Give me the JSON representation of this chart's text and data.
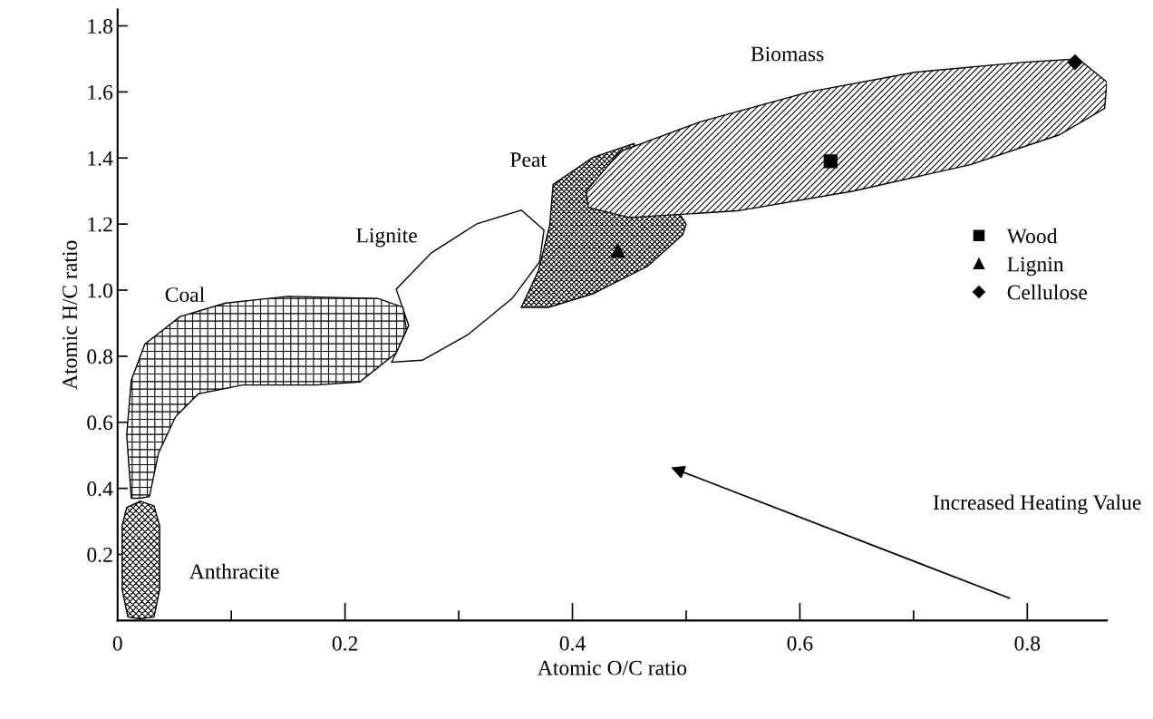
{
  "chart_data": {
    "type": "scatter",
    "xlabel": "Atomic O/C ratio",
    "ylabel": "Atomic H/C ratio",
    "xlim": [
      0,
      0.87
    ],
    "ylim": [
      0,
      1.85
    ],
    "xticks": [
      {
        "value": 0,
        "label": "0"
      },
      {
        "value": 0.1,
        "label": null
      },
      0.2,
      {
        "value": 0.3,
        "label": null
      },
      0.4,
      {
        "value": 0.5,
        "label": null
      },
      0.6,
      {
        "value": 0.7,
        "label": null
      },
      0.8
    ],
    "yticks": [
      0.2,
      0.4,
      0.6,
      0.8,
      {
        "value": 1.0,
        "label": "1.0"
      },
      1.2,
      1.4,
      1.6,
      1.8
    ],
    "grid": false,
    "legend": "right",
    "series": [
      {
        "type": "area",
        "color": "#000000",
        "x": [
          0.355,
          0.37,
          0.38,
          0.383,
          0.418,
          0.454,
          0.5,
          0.497,
          0.466,
          0.418,
          0.379
        ],
        "values": [
          0.948,
          1.058,
          1.196,
          1.32,
          1.402,
          1.444,
          1.2,
          1.168,
          1.072,
          0.989,
          0.948
        ]
      },
      {
        "type": "area",
        "color": "#000000",
        "x": [
          0.412,
          0.442,
          0.513,
          0.608,
          0.702,
          0.797,
          0.845,
          0.87,
          0.868,
          0.828,
          0.75,
          0.647,
          0.545,
          0.45,
          0.414
        ],
        "values": [
          1.3,
          1.42,
          1.51,
          1.6,
          1.66,
          1.69,
          1.7,
          1.63,
          1.55,
          1.47,
          1.38,
          1.3,
          1.24,
          1.22,
          1.25
        ]
      },
      {
        "type": "area",
        "color": "#000000",
        "x": [
          0.241,
          0.256,
          0.245,
          0.276,
          0.316,
          0.355,
          0.375,
          0.371,
          0.347,
          0.308,
          0.268
        ],
        "values": [
          0.782,
          0.893,
          1.003,
          1.113,
          1.201,
          1.242,
          1.182,
          1.085,
          0.975,
          0.865,
          0.788
        ]
      },
      {
        "type": "area",
        "color": "#000000",
        "x": [
          0.012,
          0.008,
          0.012,
          0.024,
          0.055,
          0.095,
          0.15,
          0.229,
          0.251,
          0.254,
          0.245,
          0.213,
          0.174,
          0.11,
          0.071,
          0.051,
          0.036,
          0.028,
          0.02
        ],
        "values": [
          0.37,
          0.562,
          0.727,
          0.837,
          0.92,
          0.961,
          0.981,
          0.975,
          0.948,
          0.879,
          0.81,
          0.722,
          0.713,
          0.713,
          0.686,
          0.617,
          0.507,
          0.375,
          0.37
        ]
      },
      {
        "type": "area",
        "color": "#000000",
        "x": [
          0.004,
          0.008,
          0.02,
          0.032,
          0.037,
          0.037,
          0.032,
          0.02,
          0.009,
          0.004
        ],
        "values": [
          0.287,
          0.342,
          0.361,
          0.347,
          0.287,
          0.094,
          0.011,
          0.005,
          0.011,
          0.094
        ]
      },
      {
        "name": "Wood",
        "color": "#000000",
        "marker": "square",
        "x": [
          0.627
        ],
        "values": [
          1.39
        ]
      },
      {
        "name": "Lignin",
        "color": "#000000",
        "marker": "triangle",
        "x": [
          0.44
        ],
        "values": [
          1.12
        ]
      },
      {
        "name": "Cellulose",
        "color": "#000000",
        "marker": "diamond",
        "x": [
          0.842
        ],
        "values": [
          1.69
        ]
      }
    ],
    "annotations": [
      "Coal",
      "Lignite",
      "Peat",
      "Biomass",
      "Anthracite",
      "Increased Heating Value"
    ]
  }
}
